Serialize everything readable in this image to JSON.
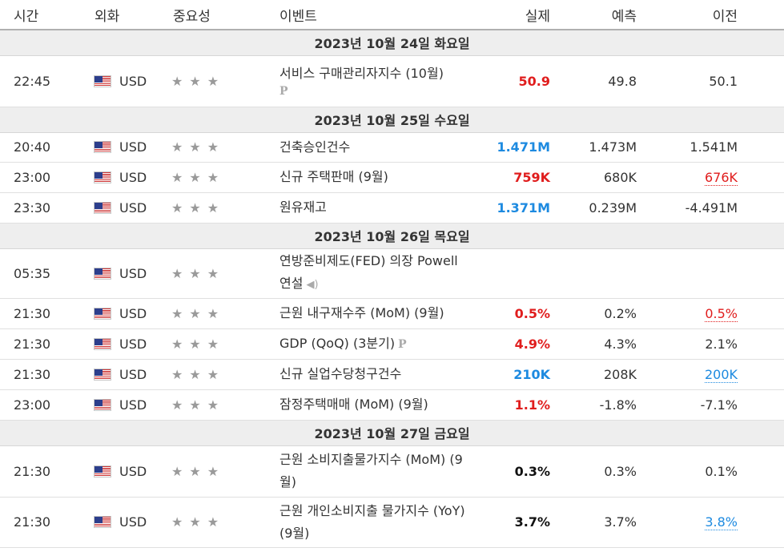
{
  "headers": {
    "time": "시간",
    "currency": "외화",
    "importance": "중요성",
    "event": "이벤트",
    "actual": "실제",
    "forecast": "예측",
    "previous": "이전"
  },
  "days": [
    {
      "label": "2023년 10월 24일 화요일",
      "events": [
        {
          "time": "22:45",
          "currency": "USD",
          "stars": "★★★",
          "event": "서비스 구매관리자지수 (10월)",
          "icon": "P",
          "actual": "50.9",
          "actual_color": "red",
          "forecast": "49.8",
          "previous": "50.1",
          "prev_style": ""
        }
      ]
    },
    {
      "label": "2023년 10월 25일 수요일",
      "events": [
        {
          "time": "20:40",
          "currency": "USD",
          "stars": "★★★",
          "event": "건축승인건수",
          "actual": "1.471M",
          "actual_color": "blue",
          "forecast": "1.473M",
          "previous": "1.541M",
          "prev_style": ""
        },
        {
          "time": "23:00",
          "currency": "USD",
          "stars": "★★★",
          "event": "신규 주택판매 (9월)",
          "actual": "759K",
          "actual_color": "red",
          "forecast": "680K",
          "previous": "676K",
          "prev_style": "red"
        },
        {
          "time": "23:30",
          "currency": "USD",
          "stars": "★★★",
          "event": "원유재고",
          "actual": "1.371M",
          "actual_color": "blue",
          "forecast": "0.239M",
          "previous": "-4.491M",
          "prev_style": ""
        }
      ]
    },
    {
      "label": "2023년 10월 26일 목요일",
      "events": [
        {
          "time": "05:35",
          "currency": "USD",
          "stars": "★★★",
          "event": "연방준비제도(FED) 의장 Powell 연설",
          "icon": "speaker",
          "actual": "",
          "actual_color": "",
          "forecast": "",
          "previous": "",
          "prev_style": ""
        },
        {
          "time": "21:30",
          "currency": "USD",
          "stars": "★★★",
          "event": "근원 내구재수주 (MoM) (9월)",
          "actual": "0.5%",
          "actual_color": "red",
          "forecast": "0.2%",
          "previous": "0.5%",
          "prev_style": "red"
        },
        {
          "time": "21:30",
          "currency": "USD",
          "stars": "★★★",
          "event": "GDP (QoQ) (3분기)",
          "icon": "P",
          "actual": "4.9%",
          "actual_color": "red",
          "forecast": "4.3%",
          "previous": "2.1%",
          "prev_style": ""
        },
        {
          "time": "21:30",
          "currency": "USD",
          "stars": "★★★",
          "event": "신규 실업수당청구건수",
          "actual": "210K",
          "actual_color": "blue",
          "forecast": "208K",
          "previous": "200K",
          "prev_style": "blue"
        },
        {
          "time": "23:00",
          "currency": "USD",
          "stars": "★★★",
          "event": "잠정주택매매 (MoM) (9월)",
          "actual": "1.1%",
          "actual_color": "red",
          "forecast": "-1.8%",
          "previous": "-7.1%",
          "prev_style": ""
        }
      ]
    },
    {
      "label": "2023년 10월 27일 금요일",
      "events": [
        {
          "time": "21:30",
          "currency": "USD",
          "stars": "★★★",
          "event": "근원 소비지출물가지수 (MoM) (9월)",
          "actual": "0.3%",
          "actual_color": "black",
          "forecast": "0.3%",
          "previous": "0.1%",
          "prev_style": ""
        },
        {
          "time": "21:30",
          "currency": "USD",
          "stars": "★★★",
          "event": "근원 개인소비지출 물가지수 (YoY) (9월)",
          "actual": "3.7%",
          "actual_color": "black",
          "forecast": "3.7%",
          "previous": "3.8%",
          "prev_style": "blue"
        }
      ]
    }
  ]
}
